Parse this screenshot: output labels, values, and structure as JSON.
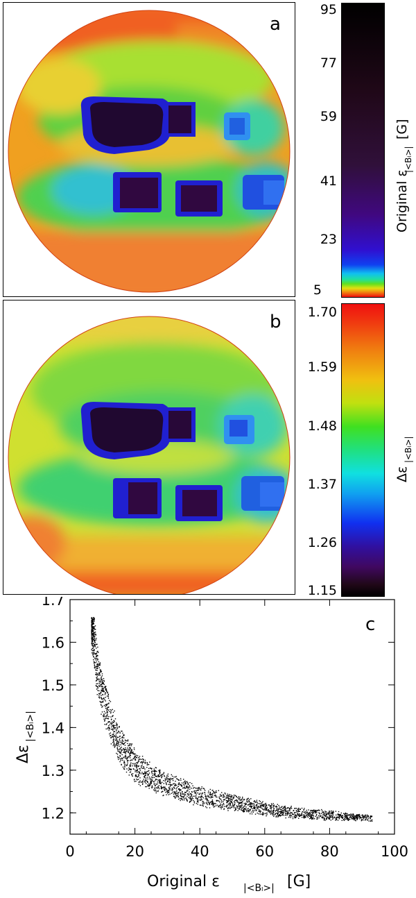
{
  "panel_a": {
    "letter": "a",
    "colorbar": {
      "label": "Original ε|<Bₗ>| [G]",
      "label_main": "Original ε",
      "label_sub": "|<Bₗ>|",
      "label_unit": "[G]",
      "ticks": [
        "95",
        "77",
        "59",
        "41",
        "23",
        "5"
      ],
      "range": [
        5,
        95
      ],
      "colormap": "inverted-rainbow (red at low, black at high)"
    }
  },
  "panel_b": {
    "letter": "b",
    "colorbar": {
      "label_main": "Δε",
      "label_sub": "|<Bₗ>|",
      "ticks": [
        "1.70",
        "1.59",
        "1.48",
        "1.37",
        "1.26",
        "1.15"
      ],
      "range": [
        1.15,
        1.7
      ],
      "colormap": "rainbow (black at low, red at high)"
    }
  },
  "panel_c": {
    "letter": "c"
  },
  "chart_data": [
    {
      "type": "heatmap",
      "panel": "a",
      "description_shape": "circular disk map",
      "colorbar_ticks": [
        95,
        77,
        59,
        41,
        23,
        5
      ],
      "zlim": [
        5,
        95
      ]
    },
    {
      "type": "heatmap",
      "panel": "b",
      "description_shape": "circular disk map",
      "colorbar_ticks": [
        1.7,
        1.59,
        1.48,
        1.37,
        1.26,
        1.15
      ],
      "zlim": [
        1.15,
        1.7
      ]
    },
    {
      "type": "scatter",
      "panel": "c",
      "xlabel_main": "Original ε",
      "xlabel_sub": "|<Bₗ>|",
      "xlabel_unit": "[G]",
      "ylabel_main": "Δε",
      "ylabel_sub": "|<Bₗ>|",
      "xlim": [
        0,
        100
      ],
      "ylim": [
        1.15,
        1.7
      ],
      "xticks": [
        "0",
        "20",
        "40",
        "60",
        "80",
        "100"
      ],
      "yticks": [
        "1.2",
        "1.3",
        "1.4",
        "1.5",
        "1.6",
        "1.7"
      ],
      "trend_points": [
        {
          "x": 6.5,
          "y": 1.66
        },
        {
          "x": 8,
          "y": 1.55
        },
        {
          "x": 10,
          "y": 1.47
        },
        {
          "x": 13,
          "y": 1.4
        },
        {
          "x": 16,
          "y": 1.35
        },
        {
          "x": 20,
          "y": 1.31
        },
        {
          "x": 25,
          "y": 1.285
        },
        {
          "x": 30,
          "y": 1.265
        },
        {
          "x": 40,
          "y": 1.24
        },
        {
          "x": 50,
          "y": 1.225
        },
        {
          "x": 60,
          "y": 1.21
        },
        {
          "x": 70,
          "y": 1.2
        },
        {
          "x": 80,
          "y": 1.195
        },
        {
          "x": 93,
          "y": 1.188
        }
      ],
      "spread_points": [
        {
          "x": 6.5,
          "dy": 0.08
        },
        {
          "x": 10,
          "dy": 0.06
        },
        {
          "x": 15,
          "dy": 0.05
        },
        {
          "x": 25,
          "dy": 0.035
        },
        {
          "x": 40,
          "dy": 0.025
        },
        {
          "x": 60,
          "dy": 0.018
        },
        {
          "x": 93,
          "dy": 0.008
        }
      ]
    }
  ]
}
